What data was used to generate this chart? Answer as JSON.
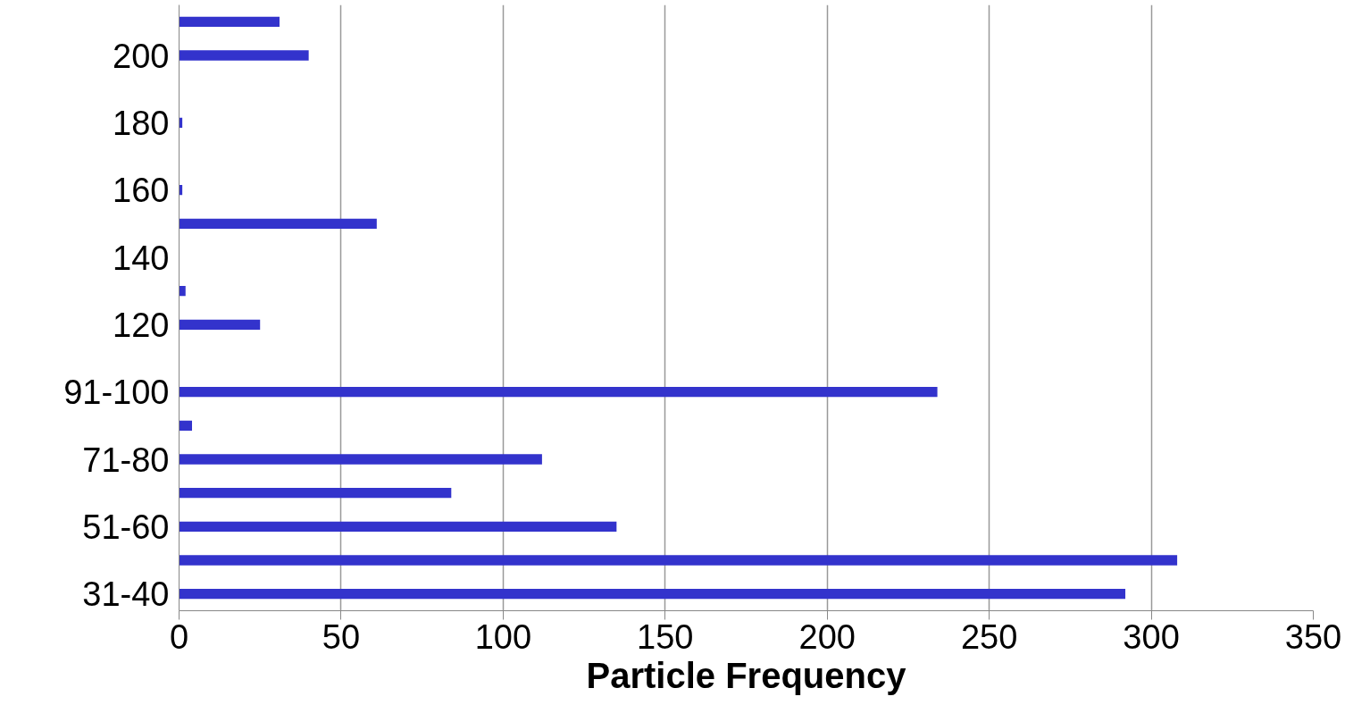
{
  "chart_data": {
    "type": "bar",
    "orientation": "horizontal",
    "xlabel": "Particle Frequency",
    "categories": [
      null,
      "200",
      null,
      "180",
      null,
      "160",
      null,
      "140",
      null,
      "120",
      null,
      "91-100",
      null,
      "71-80",
      null,
      "51-60",
      null,
      "31-40"
    ],
    "values": [
      31,
      40,
      0,
      1,
      0,
      1,
      61,
      0,
      2,
      25,
      0,
      234,
      4,
      112,
      84,
      135,
      308,
      292
    ],
    "color": "#3333cc",
    "xlim": [
      0,
      350
    ],
    "xticks": [
      0,
      50,
      100,
      150,
      200,
      250,
      300,
      350
    ],
    "grid": "x"
  }
}
